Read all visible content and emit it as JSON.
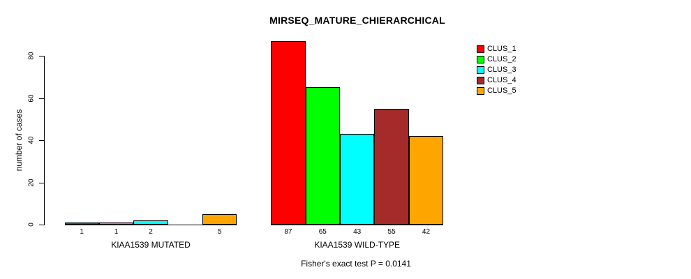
{
  "title": "MIRSEQ_MATURE_CHIERARCHICAL",
  "chart_data": {
    "type": "bar",
    "title": "MIRSEQ_MATURE_CHIERARCHICAL",
    "xlabel": "",
    "ylabel": "number of cases",
    "ylim": [
      0,
      87
    ],
    "yticks": [
      0,
      20,
      40,
      60,
      80
    ],
    "grid": false,
    "legend_position": "top-right",
    "series": [
      {
        "name": "CLUS_1",
        "color": "#FF0000"
      },
      {
        "name": "CLUS_2",
        "color": "#00FF00"
      },
      {
        "name": "CLUS_3",
        "color": "#00FFFF"
      },
      {
        "name": "CLUS_4",
        "color": "#A52A2A"
      },
      {
        "name": "CLUS_5",
        "color": "#FFA500"
      }
    ],
    "groups": [
      {
        "label": "KIAA1539 MUTATED",
        "values": [
          1,
          1,
          2,
          0,
          5
        ],
        "bar_labels": [
          "1",
          "1",
          "2",
          "",
          "5"
        ]
      },
      {
        "label": "KIAA1539 WILD-TYPE",
        "values": [
          87,
          65,
          43,
          55,
          42
        ],
        "bar_labels": [
          "87",
          "65",
          "43",
          "55",
          "42"
        ]
      }
    ],
    "annotation": "Fisher's exact test P = 0.0141"
  },
  "colors": {
    "axis": "#000000",
    "background": "#FFFFFF",
    "bar_border": "#000000"
  }
}
